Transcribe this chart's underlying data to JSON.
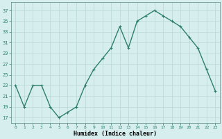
{
  "x": [
    0,
    1,
    2,
    3,
    4,
    5,
    6,
    7,
    8,
    9,
    10,
    11,
    12,
    13,
    14,
    15,
    16,
    17,
    18,
    19,
    20,
    21,
    22,
    23
  ],
  "y": [
    23,
    19,
    23,
    23,
    19,
    17,
    18,
    19,
    23,
    26,
    28,
    30,
    34,
    30,
    35,
    36,
    37,
    36,
    35,
    34,
    32,
    30,
    26,
    22
  ],
  "line_color": "#2e7d6e",
  "marker": "+",
  "marker_size": 3,
  "marker_linewidth": 0.8,
  "line_width": 1.0,
  "bg_color": "#d6efee",
  "grid_color": "#b8d8d5",
  "xlabel": "Humidex (Indice chaleur)",
  "yticks": [
    17,
    19,
    21,
    23,
    25,
    27,
    29,
    31,
    33,
    35,
    37
  ],
  "xticks": [
    0,
    1,
    2,
    3,
    4,
    5,
    6,
    7,
    8,
    9,
    10,
    11,
    12,
    13,
    14,
    15,
    16,
    17,
    18,
    19,
    20,
    21,
    22,
    23
  ],
  "xtick_labels": [
    "0",
    "1",
    "2",
    "3",
    "4",
    "5",
    "6",
    "7",
    "8",
    "9",
    "10",
    "11",
    "12",
    "13",
    "14",
    "15",
    "16",
    "17",
    "18",
    "19",
    "20",
    "21",
    "22",
    "23"
  ],
  "xlim": [
    -0.5,
    23.5
  ],
  "ylim": [
    16.0,
    38.5
  ]
}
